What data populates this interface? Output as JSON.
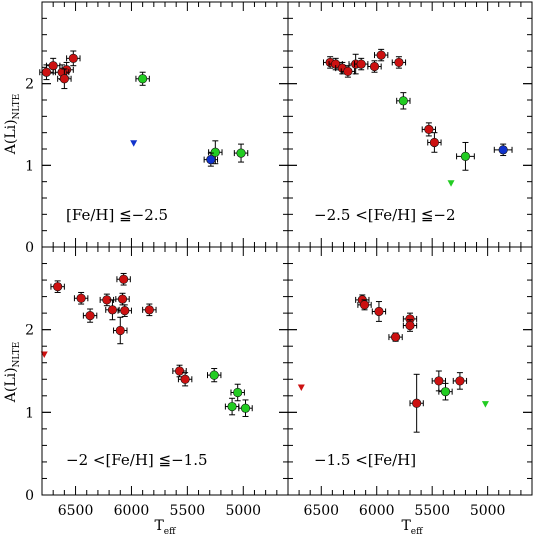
{
  "chart_data": {
    "type": "scatter",
    "ylabel_main": "A(Li)",
    "ylabel_sub": "NLTE",
    "xlabel_main": "T",
    "xlabel_sub": "eff",
    "xlim": [
      6800,
      4600
    ],
    "ylim": [
      0,
      3
    ],
    "xticks": [
      6500,
      6000,
      5500,
      5000
    ],
    "yticks": [
      0,
      1,
      2
    ],
    "colors": {
      "red": "#cc1111",
      "green": "#22cc22",
      "blue": "#1133cc"
    },
    "panels": [
      {
        "label": "[Fe/H] ≦−2.5",
        "points": [
          {
            "x": 6520,
            "y": 2.31,
            "xerr": 60,
            "yerr": 0.09,
            "color": "red"
          },
          {
            "x": 6580,
            "y": 2.17,
            "xerr": 60,
            "yerr": 0.09,
            "color": "red"
          },
          {
            "x": 6620,
            "y": 2.14,
            "xerr": 60,
            "yerr": 0.09,
            "color": "red"
          },
          {
            "x": 6600,
            "y": 2.06,
            "xerr": 60,
            "yerr": 0.12,
            "color": "red"
          },
          {
            "x": 6700,
            "y": 2.22,
            "xerr": 60,
            "yerr": 0.09,
            "color": "red"
          },
          {
            "x": 6760,
            "y": 2.14,
            "xerr": 60,
            "yerr": 0.09,
            "color": "red"
          },
          {
            "x": 5900,
            "y": 2.06,
            "xerr": 60,
            "yerr": 0.08,
            "color": "green"
          },
          {
            "x": 5250,
            "y": 1.16,
            "xerr": 60,
            "yerr": 0.14,
            "color": "green"
          },
          {
            "x": 5020,
            "y": 1.15,
            "xerr": 60,
            "yerr": 0.11,
            "color": "green"
          },
          {
            "x": 5290,
            "y": 1.07,
            "xerr": 60,
            "yerr": 0.08,
            "color": "blue"
          }
        ],
        "limits": [
          {
            "x": 5980,
            "y": 1.27,
            "color": "blue"
          }
        ]
      },
      {
        "label": "−2.5 <[Fe/H] ≦−2",
        "points": [
          {
            "x": 6420,
            "y": 2.26,
            "xerr": 60,
            "yerr": 0.07,
            "color": "red"
          },
          {
            "x": 6370,
            "y": 2.24,
            "xerr": 60,
            "yerr": 0.07,
            "color": "red"
          },
          {
            "x": 6310,
            "y": 2.19,
            "xerr": 60,
            "yerr": 0.07,
            "color": "red"
          },
          {
            "x": 6260,
            "y": 2.15,
            "xerr": 60,
            "yerr": 0.07,
            "color": "red"
          },
          {
            "x": 6190,
            "y": 2.24,
            "xerr": 60,
            "yerr": 0.12,
            "color": "red"
          },
          {
            "x": 6140,
            "y": 2.24,
            "xerr": 60,
            "yerr": 0.07,
            "color": "red"
          },
          {
            "x": 6020,
            "y": 2.21,
            "xerr": 60,
            "yerr": 0.07,
            "color": "red"
          },
          {
            "x": 5960,
            "y": 2.35,
            "xerr": 60,
            "yerr": 0.07,
            "color": "red"
          },
          {
            "x": 5800,
            "y": 2.26,
            "xerr": 60,
            "yerr": 0.07,
            "color": "red"
          },
          {
            "x": 5530,
            "y": 1.44,
            "xerr": 60,
            "yerr": 0.08,
            "color": "red"
          },
          {
            "x": 5480,
            "y": 1.28,
            "xerr": 60,
            "yerr": 0.12,
            "color": "red"
          },
          {
            "x": 5760,
            "y": 1.79,
            "xerr": 60,
            "yerr": 0.1,
            "color": "green"
          },
          {
            "x": 5200,
            "y": 1.11,
            "xerr": 80,
            "yerr": 0.17,
            "color": "green"
          },
          {
            "x": 4860,
            "y": 1.19,
            "xerr": 80,
            "yerr": 0.07,
            "color": "blue"
          }
        ],
        "limits": [
          {
            "x": 5330,
            "y": 0.78,
            "color": "green"
          }
        ]
      },
      {
        "label": "−2 <[Fe/H] ≦−1.5",
        "points": [
          {
            "x": 6660,
            "y": 2.52,
            "xerr": 60,
            "yerr": 0.07,
            "color": "red"
          },
          {
            "x": 6450,
            "y": 2.38,
            "xerr": 60,
            "yerr": 0.07,
            "color": "red"
          },
          {
            "x": 6370,
            "y": 2.17,
            "xerr": 60,
            "yerr": 0.08,
            "color": "red"
          },
          {
            "x": 6220,
            "y": 2.36,
            "xerr": 60,
            "yerr": 0.07,
            "color": "red"
          },
          {
            "x": 6170,
            "y": 2.24,
            "xerr": 60,
            "yerr": 0.12,
            "color": "red"
          },
          {
            "x": 6080,
            "y": 2.37,
            "xerr": 60,
            "yerr": 0.07,
            "color": "red"
          },
          {
            "x": 6070,
            "y": 2.61,
            "xerr": 60,
            "yerr": 0.07,
            "color": "red"
          },
          {
            "x": 6060,
            "y": 2.23,
            "xerr": 60,
            "yerr": 0.07,
            "color": "red"
          },
          {
            "x": 6100,
            "y": 1.99,
            "xerr": 60,
            "yerr": 0.16,
            "color": "red"
          },
          {
            "x": 5840,
            "y": 2.24,
            "xerr": 60,
            "yerr": 0.07,
            "color": "red"
          },
          {
            "x": 5570,
            "y": 1.5,
            "xerr": 60,
            "yerr": 0.07,
            "color": "red"
          },
          {
            "x": 5520,
            "y": 1.4,
            "xerr": 60,
            "yerr": 0.08,
            "color": "red"
          },
          {
            "x": 5260,
            "y": 1.45,
            "xerr": 60,
            "yerr": 0.08,
            "color": "green"
          },
          {
            "x": 5050,
            "y": 1.24,
            "xerr": 60,
            "yerr": 0.1,
            "color": "green"
          },
          {
            "x": 5100,
            "y": 1.07,
            "xerr": 60,
            "yerr": 0.1,
            "color": "green"
          },
          {
            "x": 4980,
            "y": 1.05,
            "xerr": 60,
            "yerr": 0.1,
            "color": "green"
          }
        ],
        "limits": [
          {
            "x": 6780,
            "y": 1.7,
            "color": "red"
          }
        ]
      },
      {
        "label": "−1.5 <[Fe/H]",
        "points": [
          {
            "x": 6130,
            "y": 2.36,
            "xerr": 60,
            "yerr": 0.06,
            "color": "red"
          },
          {
            "x": 6110,
            "y": 2.3,
            "xerr": 60,
            "yerr": 0.06,
            "color": "red"
          },
          {
            "x": 5980,
            "y": 2.22,
            "xerr": 60,
            "yerr": 0.12,
            "color": "red"
          },
          {
            "x": 5830,
            "y": 1.91,
            "xerr": 60,
            "yerr": 0.05,
            "color": "red"
          },
          {
            "x": 5700,
            "y": 2.13,
            "xerr": 60,
            "yerr": 0.07,
            "color": "red"
          },
          {
            "x": 5700,
            "y": 2.05,
            "xerr": 60,
            "yerr": 0.07,
            "color": "red"
          },
          {
            "x": 5640,
            "y": 1.11,
            "xerr": 60,
            "yerr": 0.35,
            "color": "red"
          },
          {
            "x": 5440,
            "y": 1.38,
            "xerr": 60,
            "yerr": 0.12,
            "color": "red"
          },
          {
            "x": 5250,
            "y": 1.38,
            "xerr": 60,
            "yerr": 0.1,
            "color": "red"
          },
          {
            "x": 5380,
            "y": 1.25,
            "xerr": 60,
            "yerr": 0.1,
            "color": "green"
          }
        ],
        "limits": [
          {
            "x": 6680,
            "y": 1.3,
            "color": "red"
          },
          {
            "x": 5020,
            "y": 1.1,
            "color": "green"
          }
        ]
      }
    ]
  }
}
